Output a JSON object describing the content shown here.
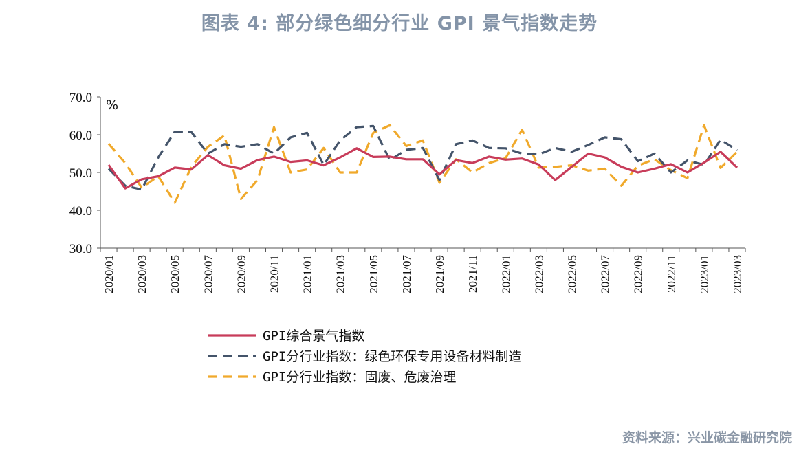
{
  "title": "图表 4:  部分绿色细分行业 GPI 景气指数走势",
  "source": "资料来源：兴业碳金融研究院",
  "chart_data": {
    "type": "line",
    "unit": "%",
    "ylim": [
      30,
      70
    ],
    "yticks": [
      "30.0",
      "40.0",
      "50.0",
      "60.0",
      "70.0"
    ],
    "x": [
      "2020/01",
      "2020/02",
      "2020/03",
      "2020/04",
      "2020/05",
      "2020/06",
      "2020/07",
      "2020/08",
      "2020/09",
      "2020/10",
      "2020/11",
      "2020/12",
      "2021/01",
      "2021/02",
      "2021/03",
      "2021/04",
      "2021/05",
      "2021/06",
      "2021/07",
      "2021/08",
      "2021/09",
      "2021/10",
      "2021/11",
      "2021/12",
      "2022/01",
      "2022/02",
      "2022/03",
      "2022/04",
      "2022/05",
      "2022/06",
      "2022/07",
      "2022/08",
      "2022/09",
      "2022/10",
      "2022/11",
      "2022/12",
      "2023/01",
      "2023/02",
      "2023/03"
    ],
    "xtick_labels": [
      "2020/01",
      "2020/03",
      "2020/05",
      "2020/07",
      "2020/09",
      "2020/11",
      "2021/01",
      "2021/03",
      "2021/05",
      "2021/07",
      "2021/09",
      "2021/11",
      "2022/01",
      "2022/03",
      "2022/05",
      "2022/07",
      "2022/09",
      "2022/11",
      "2023/01",
      "2023/03"
    ],
    "series": [
      {
        "name": "GPI综合景气指数",
        "color": "#c83c5a",
        "style": "solid",
        "values": [
          52.0,
          45.8,
          48.2,
          49.0,
          51.3,
          50.8,
          54.6,
          51.9,
          51.0,
          53.3,
          54.2,
          52.8,
          53.2,
          51.9,
          54.0,
          56.4,
          54.1,
          54.2,
          53.5,
          53.5,
          49.5,
          53.3,
          52.5,
          54.2,
          53.4,
          53.7,
          52.1,
          48.0,
          51.5,
          55.0,
          54.0,
          51.5,
          50.0,
          51.0,
          52.2,
          50.0,
          52.6,
          55.5,
          51.3
        ]
      },
      {
        "name": "GPI分行业指数：绿色环保专用设备材料制造",
        "color": "#44546a",
        "style": "dashed",
        "values": [
          51.0,
          46.5,
          45.5,
          54.0,
          60.8,
          60.7,
          55.0,
          57.5,
          56.8,
          57.5,
          55.0,
          59.3,
          60.5,
          52.0,
          58.5,
          62.0,
          62.3,
          53.3,
          56.0,
          56.5,
          48.0,
          57.5,
          58.5,
          56.5,
          56.4,
          55.0,
          54.8,
          56.5,
          55.5,
          57.3,
          59.3,
          58.8,
          53.0,
          55.0,
          50.0,
          53.2,
          52.0,
          58.7,
          55.9
        ]
      },
      {
        "name": "GPI分行业指数：固废、危废治理",
        "color": "#f0a92b",
        "style": "dashed",
        "values": [
          57.6,
          52.5,
          46.0,
          49.0,
          42.0,
          51.5,
          56.8,
          59.8,
          43.0,
          48.0,
          62.0,
          50.0,
          50.8,
          56.5,
          50.0,
          50.0,
          60.5,
          62.5,
          57.0,
          58.5,
          47.3,
          53.5,
          50.0,
          52.5,
          53.8,
          61.3,
          51.3,
          51.5,
          51.9,
          50.5,
          51.0,
          46.5,
          51.8,
          53.5,
          50.6,
          48.5,
          62.5,
          51.2,
          55.5
        ]
      }
    ]
  }
}
